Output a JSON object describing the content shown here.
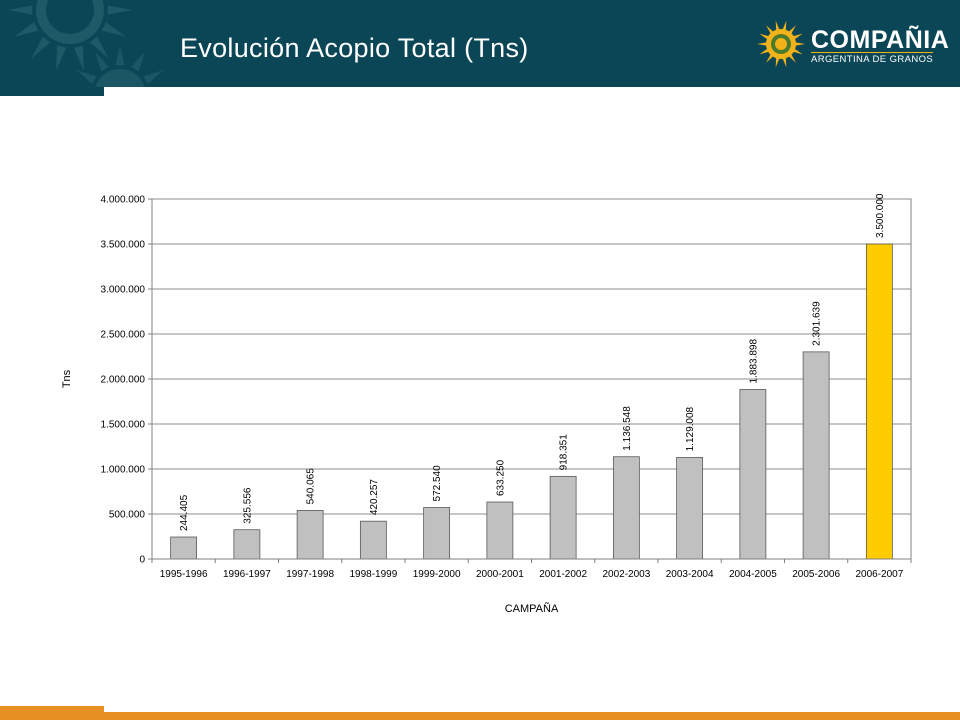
{
  "header": {
    "title": "Evolución Acopio Total (Tns)",
    "background_color": "#0b4656"
  },
  "logo": {
    "name": "COMPAÑIA",
    "subtitle": "ARGENTINA DE GRANOS",
    "sun_color": "#f2b21a"
  },
  "footer": {
    "accent_color": "#e88f23"
  },
  "chart_data": {
    "type": "bar",
    "xlabel": "CAMPAÑA",
    "ylabel": "Tns",
    "ylim": [
      0,
      4000000
    ],
    "grid": true,
    "legend": "none",
    "y_ticks": [
      "0",
      "500.000",
      "1.000.000",
      "1.500.000",
      "2.000.000",
      "2.500.000",
      "3.000.000",
      "3.500.000",
      "4.000.000"
    ],
    "categories": [
      "1995-1996",
      "1996-1997",
      "1997-1998",
      "1998-1999",
      "1999-2000",
      "2000-2001",
      "2001-2002",
      "2002-2003",
      "2003-2004",
      "2004-2005",
      "2005-2006",
      "2006-2007"
    ],
    "values": [
      244405,
      325556,
      540065,
      420257,
      572540,
      633250,
      918351,
      1136548,
      1129008,
      1883898,
      2301639,
      3500000
    ],
    "value_labels": [
      "244.405",
      "325.556",
      "540.065",
      "420.257",
      "572.540",
      "633.250",
      "918.351",
      "1.136.548",
      "1.129.008",
      "1.883.898",
      "2.301.639",
      "3.500.000"
    ],
    "bar_color": "#c0c0c0",
    "highlight_color": "#ffcc00",
    "highlight_category": "2006-2007"
  }
}
